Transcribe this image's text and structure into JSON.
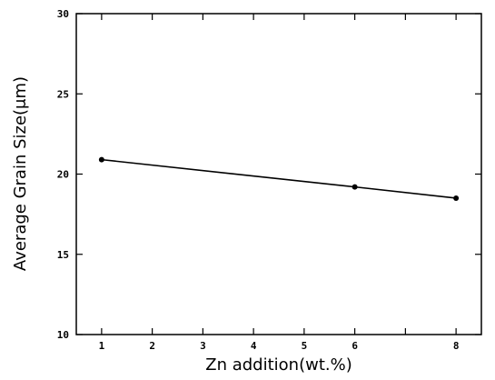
{
  "chart_data": {
    "type": "line",
    "title": "",
    "xlabel": "Zn addition(wt.%)",
    "ylabel": "Average Grain Size(μm)",
    "xlim": [
      0.5,
      8.5
    ],
    "ylim": [
      10,
      30
    ],
    "xticks": [
      1,
      2,
      3,
      4,
      5,
      6,
      7,
      8
    ],
    "xtick_labels": [
      "1",
      "2",
      "3",
      "4",
      "5",
      "6",
      "",
      "8"
    ],
    "yticks": [
      10,
      15,
      20,
      25,
      30
    ],
    "ytick_labels": [
      "10",
      "15",
      "20",
      "25",
      "30"
    ],
    "grid": false,
    "series": [
      {
        "x": [
          1,
          6,
          8
        ],
        "y": [
          20.9,
          19.2,
          18.5
        ]
      }
    ],
    "colors": {
      "line": "#000000",
      "marker": "#000000",
      "axis": "#000000"
    }
  }
}
